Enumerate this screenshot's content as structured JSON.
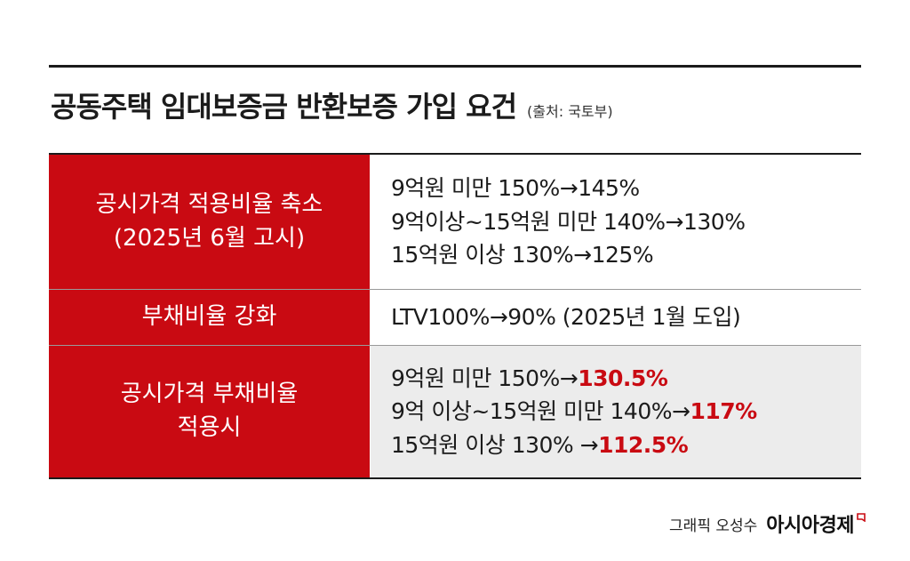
{
  "header": {
    "title": "공동주택 임대보증금 반환보증 가입 요건",
    "source": "(출처: 국토부)"
  },
  "rows": [
    {
      "label_lines": [
        "공시가격 적용비율 축소",
        "(2025년 6월 고시)"
      ],
      "value_lines": [
        {
          "text": "9억원 미만 150%→145%",
          "highlight": ""
        },
        {
          "text": "9억이상~15억원 미만 140%→130%",
          "highlight": ""
        },
        {
          "text": "15억원 이상 130%→125%",
          "highlight": ""
        }
      ]
    },
    {
      "label_lines": [
        "부채비율 강화"
      ],
      "value_lines": [
        {
          "text": "LTV100%→90% (2025년 1월 도입)",
          "highlight": ""
        }
      ]
    },
    {
      "label_lines": [
        "공시가격 부채비율",
        "적용시"
      ],
      "value_lines": [
        {
          "text": "9억원 미만 150%→",
          "highlight": "130.5%"
        },
        {
          "text": "9억 이상~15억원 미만 140%→",
          "highlight": "117%"
        },
        {
          "text": "15억원 이상 130% →",
          "highlight": "112.5%"
        }
      ]
    }
  ],
  "footer": {
    "credit": "그래픽 오성수",
    "brand": "아시아경제"
  },
  "colors": {
    "accent_red": "#c90a12",
    "row_gray": "#ececec",
    "text": "#1b1b1b"
  }
}
